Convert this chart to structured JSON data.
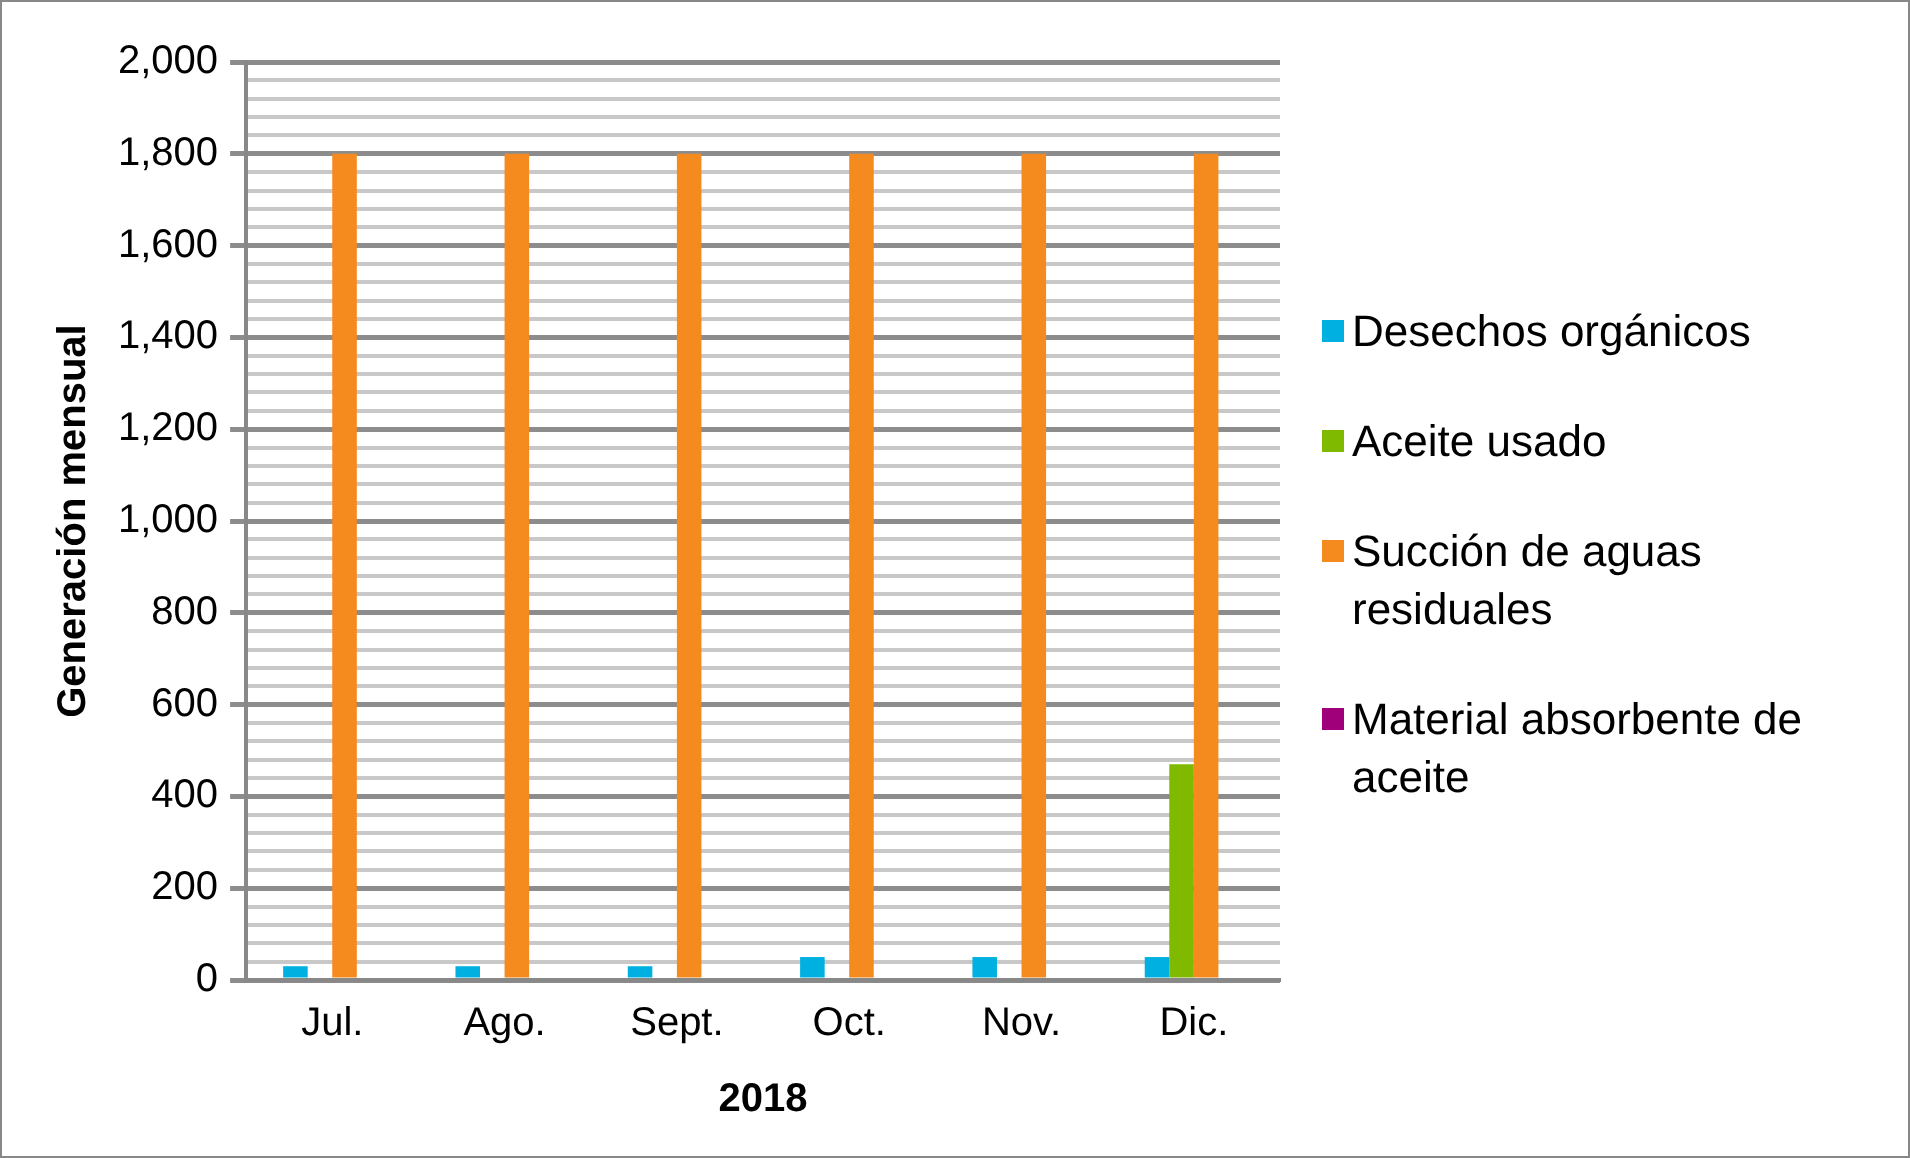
{
  "chart_data": {
    "type": "bar",
    "categories": [
      "Jul.",
      "Ago.",
      "Sept.",
      "Oct.",
      "Nov.",
      "Dic."
    ],
    "xlabel": "2018",
    "ylabel": "Generación mensual",
    "series": [
      {
        "name": "Desechos orgánicos",
        "color": "#00b0e0",
        "values": [
          30,
          30,
          30,
          50,
          50,
          50
        ]
      },
      {
        "name": "Aceite usado",
        "color": "#7fba00",
        "values": [
          0,
          0,
          0,
          0,
          0,
          470
        ]
      },
      {
        "name": "Succión de aguas residuales",
        "color": "#f58a1f",
        "values": [
          1800,
          1800,
          1800,
          1800,
          1800,
          1800
        ]
      },
      {
        "name": "Material absorbente de aceite",
        "color": "#a0007a",
        "values": [
          0,
          0,
          0,
          0,
          0,
          0
        ]
      }
    ],
    "ylim": [
      0,
      2000
    ],
    "yticks": [
      0,
      {
        "value": 40,
        "label": null
      },
      {
        "value": 80,
        "label": null
      },
      {
        "value": 120,
        "label": null
      },
      {
        "value": 160,
        "label": null
      },
      200,
      {
        "value": 240,
        "label": null
      },
      {
        "value": 280,
        "label": null
      },
      {
        "value": 320,
        "label": null
      },
      {
        "value": 360,
        "label": null
      },
      400,
      {
        "value": 440,
        "label": null
      },
      {
        "value": 480,
        "label": null
      },
      {
        "value": 520,
        "label": null
      },
      {
        "value": 560,
        "label": null
      },
      600,
      {
        "value": 640,
        "label": null
      },
      {
        "value": 680,
        "label": null
      },
      {
        "value": 720,
        "label": null
      },
      {
        "value": 760,
        "label": null
      },
      800,
      {
        "value": 840,
        "label": null
      },
      {
        "value": 880,
        "label": null
      },
      {
        "value": 920,
        "label": null
      },
      {
        "value": 960,
        "label": null
      },
      {
        "value": 1000,
        "label": "1,000"
      },
      {
        "value": 1040,
        "label": null
      },
      {
        "value": 1080,
        "label": null
      },
      {
        "value": 1120,
        "label": null
      },
      {
        "value": 1160,
        "label": null
      },
      {
        "value": 1200,
        "label": "1,200"
      },
      {
        "value": 1240,
        "label": null
      },
      {
        "value": 1280,
        "label": null
      },
      {
        "value": 1320,
        "label": null
      },
      {
        "value": 1360,
        "label": null
      },
      {
        "value": 1400,
        "label": "1,400"
      },
      {
        "value": 1440,
        "label": null
      },
      {
        "value": 1480,
        "label": null
      },
      {
        "value": 1520,
        "label": null
      },
      {
        "value": 1560,
        "label": null
      },
      {
        "value": 1600,
        "label": "1,600"
      },
      {
        "value": 1640,
        "label": null
      },
      {
        "value": 1680,
        "label": null
      },
      {
        "value": 1720,
        "label": null
      },
      {
        "value": 1760,
        "label": null
      },
      {
        "value": 1800,
        "label": "1,800"
      },
      {
        "value": 1840,
        "label": null
      },
      {
        "value": 1880,
        "label": null
      },
      {
        "value": 1920,
        "label": null
      },
      {
        "value": 1960,
        "label": null
      },
      {
        "value": 2000,
        "label": "2,000"
      }
    ],
    "grid": "y",
    "legend": "right"
  }
}
